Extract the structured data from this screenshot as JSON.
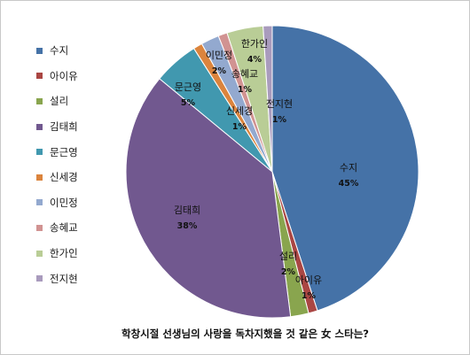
{
  "chart_data": {
    "type": "pie",
    "title": "학창시절 선생님의 사랑을 독차지했을 것 같은 女 스타는?",
    "legend_position": "left",
    "slices": [
      {
        "name": "수지",
        "value": 45,
        "label": "45%",
        "color": "#4572A7"
      },
      {
        "name": "아이유",
        "value": 1,
        "label": "1%",
        "color": "#AA4643"
      },
      {
        "name": "설리",
        "value": 2,
        "label": "2%",
        "color": "#89A54E"
      },
      {
        "name": "김태희",
        "value": 38,
        "label": "38%",
        "color": "#71588F"
      },
      {
        "name": "문근영",
        "value": 5,
        "label": "5%",
        "color": "#4198AF"
      },
      {
        "name": "신세경",
        "value": 1,
        "label": "1%",
        "color": "#DB843D"
      },
      {
        "name": "이민정",
        "value": 2,
        "label": "2%",
        "color": "#93A9CF"
      },
      {
        "name": "송혜교",
        "value": 1,
        "label": "1%",
        "color": "#D19392"
      },
      {
        "name": "한가인",
        "value": 4,
        "label": "4%",
        "color": "#B9CD96"
      },
      {
        "name": "전지현",
        "value": 1,
        "label": "1%",
        "color": "#A99BBD"
      }
    ]
  }
}
